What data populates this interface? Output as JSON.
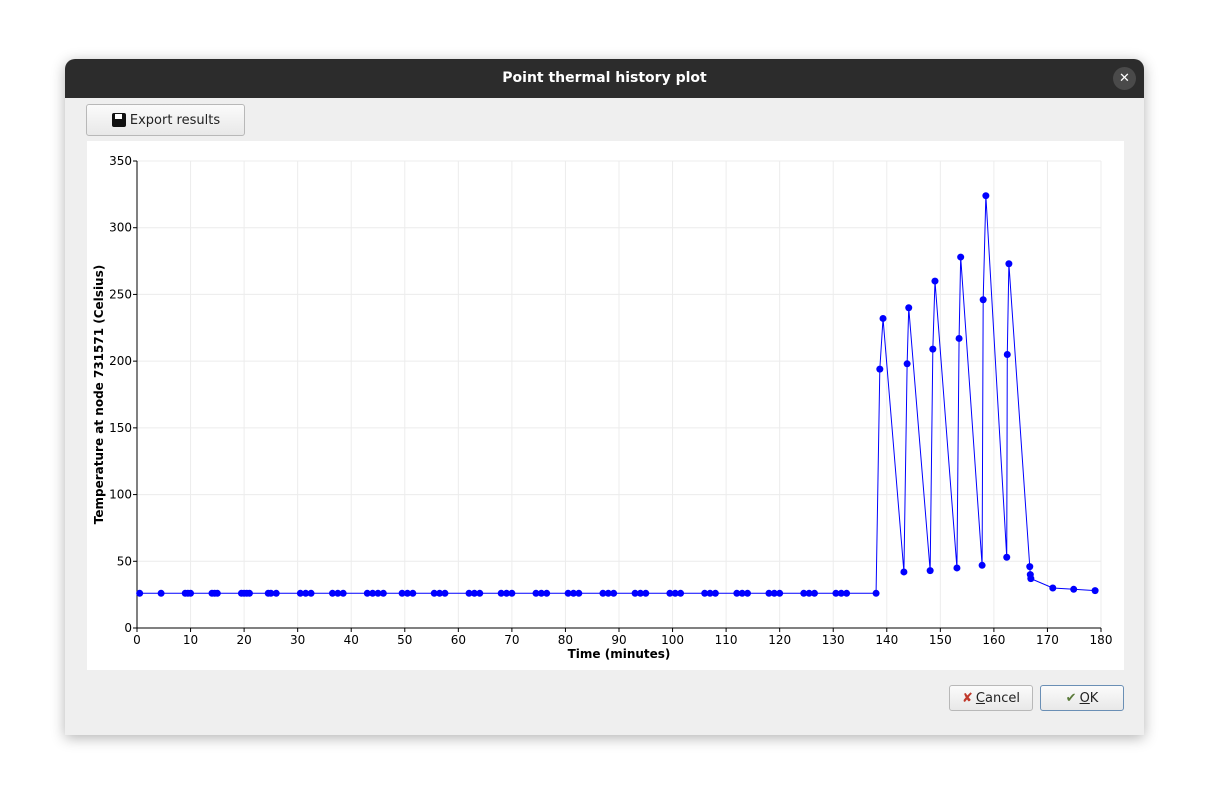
{
  "window": {
    "title": "Point thermal history plot"
  },
  "toolbar": {
    "export_button": "Export results"
  },
  "buttons": {
    "cancel": "Cancel",
    "ok": "OK"
  },
  "chart_data": {
    "type": "line",
    "xlabel": "Time (minutes)",
    "ylabel": "Temperature at node 731571 (Celsius)",
    "color": "#0000ff",
    "grid": true,
    "xlim": [
      0,
      180
    ],
    "xticks": [
      0,
      10,
      20,
      30,
      40,
      50,
      60,
      70,
      80,
      90,
      100,
      110,
      120,
      130,
      140,
      150,
      160,
      170,
      180
    ],
    "ylim": [
      0,
      350
    ],
    "yticks": [
      0,
      50,
      100,
      150,
      200,
      250,
      300,
      350
    ],
    "x": [
      0.5,
      4.5,
      9,
      9.5,
      10,
      14,
      14.5,
      15,
      19.5,
      20,
      20.5,
      21,
      24.5,
      25,
      26,
      30.5,
      31.5,
      32.5,
      36.5,
      37.5,
      38.5,
      43,
      44,
      45,
      46,
      49.5,
      50.5,
      51.5,
      55.5,
      56.5,
      57.5,
      62,
      63,
      64,
      68,
      69,
      70,
      74.5,
      75.5,
      76.5,
      80.5,
      81.5,
      82.5,
      87,
      88,
      89,
      93,
      94,
      95,
      99.5,
      100.5,
      101.5,
      106,
      107,
      108,
      112,
      113,
      114,
      118,
      119,
      120,
      124.5,
      125.5,
      126.5,
      130.5,
      131.5,
      132.5,
      138,
      138.7,
      139.3,
      143.2,
      143.8,
      144.1,
      148.1,
      148.6,
      149,
      153.1,
      153.5,
      153.8,
      157.8,
      158,
      158.5,
      162.4,
      162.5,
      162.8,
      166.7,
      166.8,
      166.9,
      171,
      174.9,
      178.9
    ],
    "values": [
      26,
      26,
      26,
      26,
      26,
      26,
      26,
      26,
      26,
      26,
      26,
      26,
      26,
      26,
      26,
      26,
      26,
      26,
      26,
      26,
      26,
      26,
      26,
      26,
      26,
      26,
      26,
      26,
      26,
      26,
      26,
      26,
      26,
      26,
      26,
      26,
      26,
      26,
      26,
      26,
      26,
      26,
      26,
      26,
      26,
      26,
      26,
      26,
      26,
      26,
      26,
      26,
      26,
      26,
      26,
      26,
      26,
      26,
      26,
      26,
      26,
      26,
      26,
      26,
      26,
      26,
      26,
      26,
      194,
      232,
      42,
      198,
      240,
      43,
      209,
      260,
      45,
      217,
      278,
      47,
      246,
      324,
      53,
      205,
      273,
      46,
      40,
      37,
      30,
      29,
      28
    ]
  }
}
